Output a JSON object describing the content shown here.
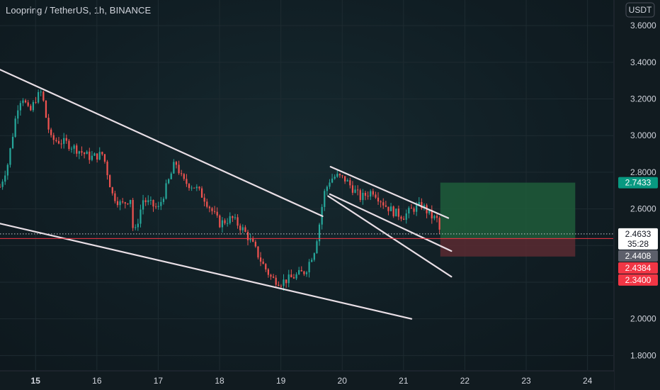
{
  "header": {
    "title": "Loopring / TetherUS, 1h, BINANCE"
  },
  "chart_data": {
    "type": "candlestick",
    "currency": "USDT",
    "x_axis": {
      "ticks": [
        "15",
        "16",
        "17",
        "18",
        "19",
        "20",
        "21",
        "22",
        "23",
        "24"
      ],
      "range_days": [
        14.42,
        24.42
      ]
    },
    "y_axis": {
      "ticks": [
        "3.6000",
        "3.4000",
        "3.2000",
        "3.0000",
        "2.8000",
        "2.6000",
        "2.4000",
        "2.2000",
        "2.0000",
        "1.8000"
      ],
      "range": [
        1.72,
        3.74
      ]
    },
    "price_path": [
      [
        14.42,
        2.72
      ],
      [
        14.55,
        2.85
      ],
      [
        14.7,
        3.15
      ],
      [
        14.78,
        3.22
      ],
      [
        14.9,
        3.12
      ],
      [
        15.0,
        3.2
      ],
      [
        15.1,
        3.24
      ],
      [
        15.17,
        3.1
      ],
      [
        15.25,
        2.98
      ],
      [
        15.5,
        2.96
      ],
      [
        15.7,
        2.92
      ],
      [
        15.9,
        2.88
      ],
      [
        16.1,
        2.9
      ],
      [
        16.25,
        2.68
      ],
      [
        16.4,
        2.62
      ],
      [
        16.55,
        2.66
      ],
      [
        16.6,
        2.44
      ],
      [
        16.75,
        2.65
      ],
      [
        17.0,
        2.6
      ],
      [
        17.2,
        2.78
      ],
      [
        17.28,
        2.86
      ],
      [
        17.4,
        2.75
      ],
      [
        17.6,
        2.72
      ],
      [
        17.75,
        2.66
      ],
      [
        18.0,
        2.52
      ],
      [
        18.2,
        2.55
      ],
      [
        18.4,
        2.48
      ],
      [
        18.55,
        2.4
      ],
      [
        18.7,
        2.3
      ],
      [
        18.85,
        2.22
      ],
      [
        19.0,
        2.2
      ],
      [
        19.15,
        2.22
      ],
      [
        19.4,
        2.26
      ],
      [
        19.55,
        2.38
      ],
      [
        19.62,
        2.5
      ],
      [
        19.7,
        2.68
      ],
      [
        19.8,
        2.76
      ],
      [
        19.9,
        2.78
      ],
      [
        20.05,
        2.76
      ],
      [
        20.15,
        2.72
      ],
      [
        20.3,
        2.66
      ],
      [
        20.5,
        2.7
      ],
      [
        20.7,
        2.62
      ],
      [
        20.85,
        2.58
      ],
      [
        21.0,
        2.56
      ],
      [
        21.15,
        2.6
      ],
      [
        21.3,
        2.62
      ],
      [
        21.45,
        2.56
      ],
      [
        21.55,
        2.54
      ],
      [
        21.6,
        2.4633
      ]
    ],
    "trend_lines": [
      {
        "from": [
          14.42,
          3.36
        ],
        "to": [
          19.68,
          2.56
        ]
      },
      {
        "from": [
          14.42,
          2.52
        ],
        "to": [
          21.13,
          2.0
        ]
      },
      {
        "from": [
          19.77,
          2.67
        ],
        "to": [
          21.78,
          2.23
        ]
      },
      {
        "from": [
          19.81,
          2.83
        ],
        "to": [
          21.73,
          2.55
        ]
      },
      {
        "from": [
          19.8,
          2.68
        ],
        "to": [
          21.78,
          2.37
        ]
      }
    ],
    "position_box": {
      "start_day": 21.6,
      "end_day": 23.8,
      "entry": 2.4384,
      "target": 2.7433,
      "stop": 2.34
    },
    "current_price": 2.4633,
    "current_line_value": 2.4408,
    "price_labels": [
      {
        "value": "2.7433",
        "color": "#089981",
        "text_color": "#ffffff",
        "level": 2.7433
      },
      {
        "value": "2.4633",
        "sub": "35:28",
        "color": "#ffffff",
        "text_color": "#131722",
        "level": 2.4633
      },
      {
        "value": "2.4408",
        "color": "#5d606b",
        "text_color": "#ffffff",
        "level": 2.4408
      },
      {
        "value": "2.4384",
        "color": "#f23645",
        "text_color": "#ffffff",
        "level": 2.4384
      },
      {
        "value": "2.3400",
        "color": "#f23645",
        "text_color": "#ffffff",
        "level": 2.34
      }
    ],
    "colors": {
      "up": "#26a69a",
      "down": "#ef5350",
      "trend_line": "#e9dfe6",
      "profit_zone": "#1e5c3a",
      "loss_zone": "#5a2a31",
      "grid": "#1e2b31",
      "entry_line": "#f23645"
    },
    "grid": true
  }
}
